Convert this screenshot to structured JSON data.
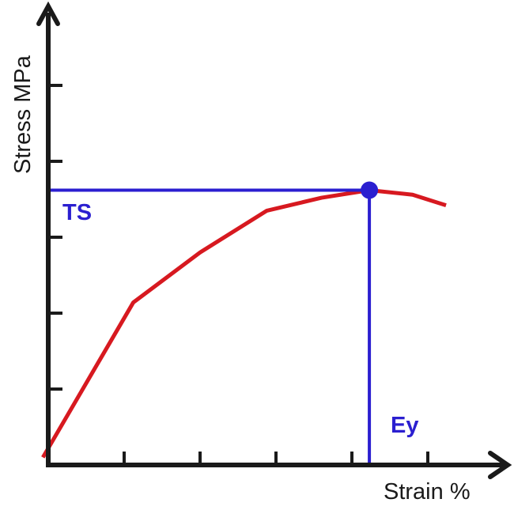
{
  "chart_data": {
    "type": "line",
    "xlabel": "Strain %",
    "ylabel": "Stress MPa",
    "x_ticks": 5,
    "y_ticks": 5,
    "xlim": [
      0,
      6
    ],
    "ylim": [
      0,
      6
    ],
    "grid": false,
    "series": [
      {
        "color": "#d71920",
        "points": [
          [
            -0.07,
            0.1
          ],
          [
            1.12,
            2.14
          ],
          [
            2.0,
            2.8
          ],
          [
            2.88,
            3.35
          ],
          [
            3.6,
            3.52
          ],
          [
            4.23,
            3.62
          ],
          [
            4.8,
            3.56
          ],
          [
            5.24,
            3.42
          ]
        ]
      }
    ],
    "annotations": [
      {
        "label": "TS",
        "type": "hline",
        "y": 3.62,
        "color": "#2b1fd0"
      },
      {
        "label": "Ey",
        "type": "vline",
        "x": 4.23,
        "color": "#2b1fd0"
      }
    ],
    "marker": {
      "x": 4.23,
      "y": 3.62,
      "color": "#2b1fd0"
    },
    "axis_color": "#1a1a1a"
  }
}
